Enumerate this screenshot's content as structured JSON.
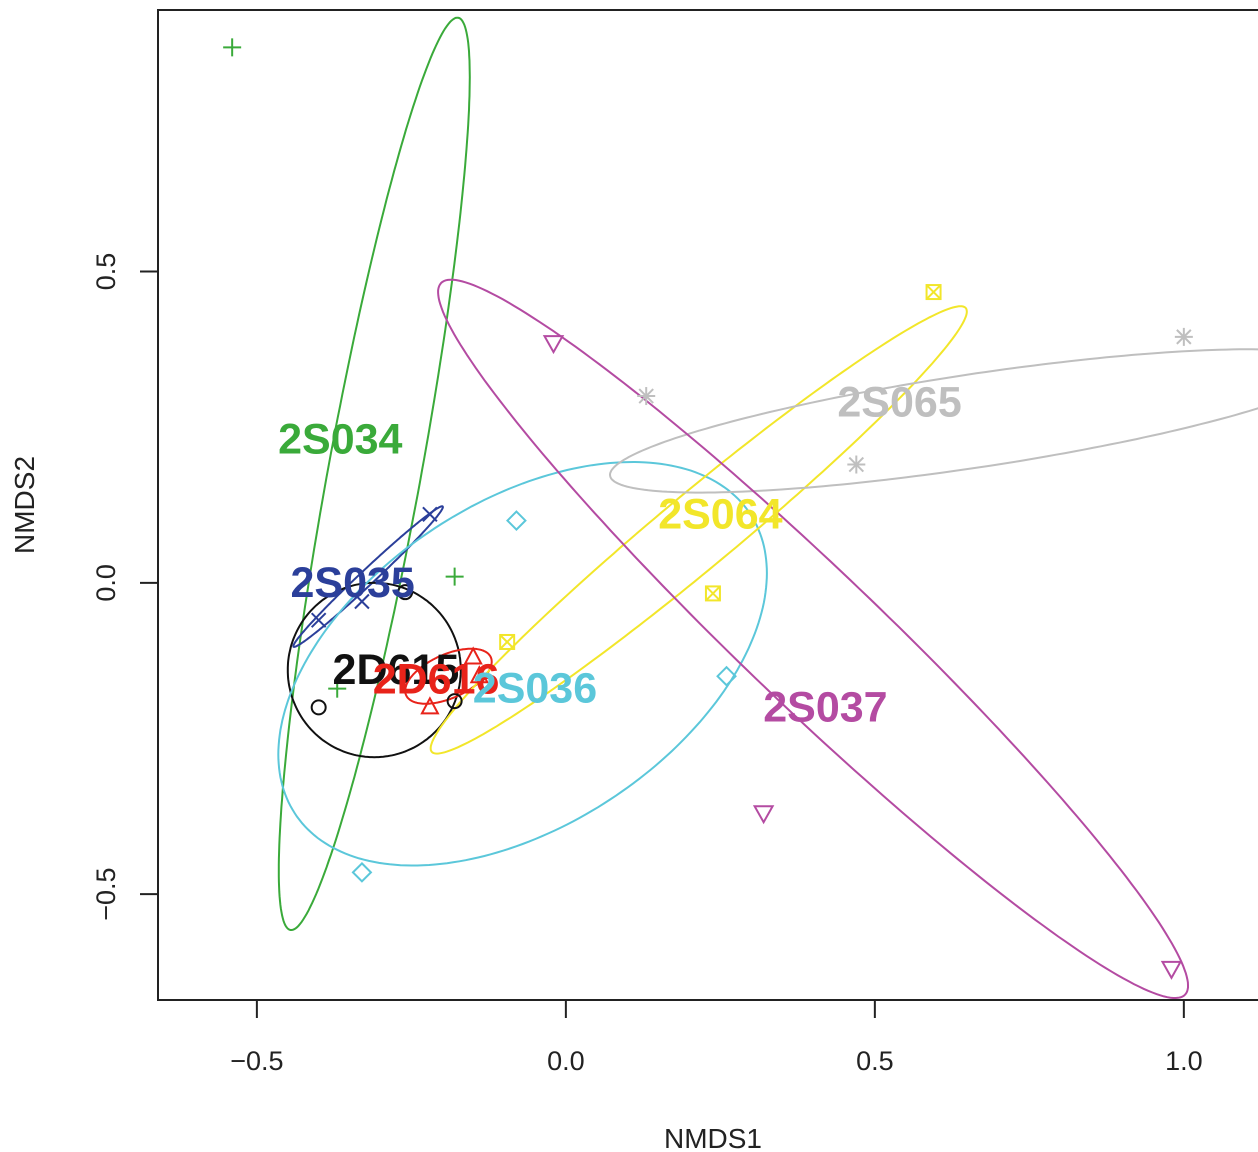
{
  "chart_data": {
    "type": "scatter",
    "xlabel": "NMDS1",
    "ylabel": "NMDS2",
    "xlim": [
      -0.66,
      1.12
    ],
    "ylim": [
      -0.67,
      0.92
    ],
    "x_ticks": [
      -0.5,
      0.0,
      0.5,
      1.0
    ],
    "x_tick_labels": [
      "−0.5",
      "0.0",
      "0.5",
      "1.0"
    ],
    "y_ticks": [
      -0.5,
      0.0,
      0.5
    ],
    "y_tick_labels": [
      "−0.5",
      "0.0",
      "0.5"
    ],
    "grid": false,
    "legend": "none",
    "series": [
      {
        "label": "2S034",
        "marker": "plus",
        "color": "#3aaa3a",
        "points": [
          [
            -0.54,
            0.86
          ],
          [
            -0.18,
            0.01
          ],
          [
            -0.37,
            -0.17
          ]
        ],
        "ellipse": {
          "cx": -0.31,
          "cy": 0.175,
          "rx": 0.745,
          "ry": 0.075,
          "angle_deg": 79.5
        },
        "label_pos": [
          -0.365,
          0.23
        ]
      },
      {
        "label": "2S035",
        "marker": "x",
        "color": "#2b3f9a",
        "points": [
          [
            -0.22,
            0.11
          ],
          [
            -0.33,
            -0.03
          ],
          [
            -0.4,
            -0.06
          ]
        ],
        "ellipse": {
          "cx": -0.32,
          "cy": 0.01,
          "rx": 0.165,
          "ry": 0.012,
          "angle_deg": 43
        },
        "label_pos": [
          -0.345,
          0.0
        ]
      },
      {
        "label": "2D615",
        "marker": "circle",
        "color": "#111111",
        "points": [
          [
            -0.26,
            -0.015
          ],
          [
            -0.4,
            -0.2
          ],
          [
            -0.18,
            -0.19
          ]
        ],
        "ellipse": {
          "cx": -0.31,
          "cy": -0.14,
          "rx": 0.14,
          "ry": 0.14,
          "angle_deg": 0
        },
        "label_pos": [
          -0.275,
          -0.14
        ]
      },
      {
        "label": "2D616",
        "marker": "triangle",
        "color": "#e8231a",
        "points": [
          [
            -0.22,
            -0.2
          ],
          [
            -0.15,
            -0.12
          ],
          [
            -0.14,
            -0.15
          ]
        ],
        "ellipse": {
          "cx": -0.19,
          "cy": -0.15,
          "rx": 0.075,
          "ry": 0.035,
          "angle_deg": 24
        },
        "label_pos": [
          -0.21,
          -0.155
        ]
      },
      {
        "label": "2S036",
        "marker": "diamond",
        "color": "#5bc7da",
        "points": [
          [
            -0.08,
            0.1
          ],
          [
            0.26,
            -0.15
          ],
          [
            -0.33,
            -0.465
          ]
        ],
        "ellipse": {
          "cx": -0.07,
          "cy": -0.13,
          "rx": 0.44,
          "ry": 0.26,
          "angle_deg": 33
        },
        "label_pos": [
          -0.05,
          -0.17
        ]
      },
      {
        "label": "2S064",
        "marker": "box-x",
        "color": "#f2e62a",
        "points": [
          [
            0.595,
            0.467
          ],
          [
            0.238,
            -0.017
          ],
          [
            -0.095,
            -0.095
          ]
        ],
        "ellipse": {
          "cx": 0.215,
          "cy": 0.085,
          "rx": 0.56,
          "ry": 0.06,
          "angle_deg": 39.5
        },
        "label_pos": [
          0.25,
          0.11
        ]
      },
      {
        "label": "2S065",
        "marker": "asterisk",
        "color": "#bfbfbf",
        "points": [
          [
            0.13,
            0.3
          ],
          [
            0.47,
            0.19
          ],
          [
            1.0,
            0.395
          ]
        ],
        "ellipse": {
          "cx": 0.66,
          "cy": 0.26,
          "rx": 0.595,
          "ry": 0.075,
          "angle_deg": 8.5
        },
        "label_pos": [
          0.54,
          0.29
        ]
      },
      {
        "label": "2S037",
        "marker": "triangle-down",
        "color": "#b44ba2",
        "points": [
          [
            -0.02,
            0.385
          ],
          [
            0.32,
            -0.37
          ],
          [
            0.98,
            -0.62
          ]
        ],
        "ellipse": {
          "cx": 0.4,
          "cy": -0.09,
          "rx": 0.83,
          "ry": 0.11,
          "angle_deg": -43.5
        },
        "label_pos": [
          0.42,
          -0.2
        ]
      }
    ]
  }
}
